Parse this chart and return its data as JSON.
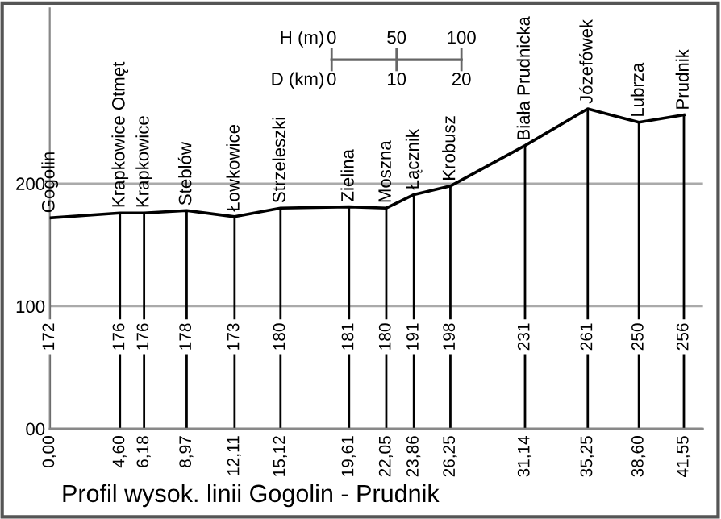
{
  "chart_data": {
    "type": "line",
    "title": "Profil wysok. linii Gogolin - Prudnik",
    "x": [
      0.0,
      4.6,
      6.18,
      8.97,
      12.11,
      15.12,
      19.61,
      22.05,
      23.86,
      26.25,
      31.14,
      35.25,
      38.6,
      41.55
    ],
    "series": [
      {
        "color": "#000000",
        "values": [
          172,
          176,
          176,
          178,
          173,
          180,
          181,
          180,
          191,
          198,
          231,
          261,
          250,
          256
        ]
      }
    ],
    "annotations": [
      {
        "text": "Gogolin",
        "x": 0.0,
        "y": 172
      },
      {
        "text": "Krapkowice Otmęt",
        "x": 4.6,
        "y": 176
      },
      {
        "text": "Krapkowice",
        "x": 6.18,
        "y": 176
      },
      {
        "text": "Steblów",
        "x": 8.97,
        "y": 178
      },
      {
        "text": "Łowkowice",
        "x": 12.11,
        "y": 173
      },
      {
        "text": "Strzeleszki",
        "x": 15.12,
        "y": 180
      },
      {
        "text": "Zielina",
        "x": 19.61,
        "y": 181
      },
      {
        "text": "Moszna",
        "x": 22.05,
        "y": 180
      },
      {
        "text": "Łącznik",
        "x": 23.86,
        "y": 191
      },
      {
        "text": "Krobusz",
        "x": 26.25,
        "y": 198
      },
      {
        "text": "Biała Prudnicka",
        "x": 31.14,
        "y": 231
      },
      {
        "text": "Józefówek",
        "x": 35.25,
        "y": 261
      },
      {
        "text": "Lubrza",
        "x": 38.6,
        "y": 250
      },
      {
        "text": "Prudnik",
        "x": 41.55,
        "y": 256
      },
      "H (m)",
      "0",
      "50",
      "100",
      "D (km)",
      "0",
      "10",
      "20",
      "172",
      "176",
      "176",
      "178",
      "173",
      "180",
      "181",
      "180",
      "191",
      "198",
      "231",
      "261",
      "250",
      "256"
    ],
    "xlim": [
      0,
      42.8
    ],
    "ylim": [
      0,
      343
    ],
    "xticks": [
      {
        "value": 0.0,
        "label": "0,00"
      },
      {
        "value": 4.6,
        "label": "4,60"
      },
      {
        "value": 6.18,
        "label": "6,18"
      },
      {
        "value": 8.97,
        "label": "8,97"
      },
      {
        "value": 12.11,
        "label": "12,11"
      },
      {
        "value": 15.12,
        "label": "15,12"
      },
      {
        "value": 19.61,
        "label": "19,61"
      },
      {
        "value": 22.05,
        "label": "22,05"
      },
      {
        "value": 23.86,
        "label": "23,86"
      },
      {
        "value": 26.25,
        "label": "26,25"
      },
      {
        "value": 31.14,
        "label": "31,14"
      },
      {
        "value": 35.25,
        "label": "35,25"
      },
      {
        "value": 38.6,
        "label": "38,60"
      },
      {
        "value": 41.55,
        "label": "41,55"
      }
    ],
    "yticks": [
      {
        "value": 0,
        "label": "00"
      },
      100,
      200
    ],
    "grid": true,
    "marker": "none",
    "line_style": "solid"
  }
}
